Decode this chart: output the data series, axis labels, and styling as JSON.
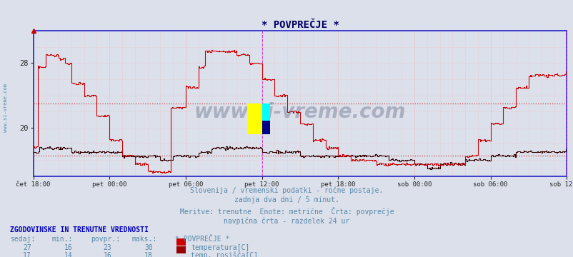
{
  "title": "* POVPREČJE *",
  "bg_color": "#dce0ea",
  "plot_bg_color": "#dce0ea",
  "line_temp_color": "#cc0000",
  "line_dew_color": "#330000",
  "grid_minor_color": "#f0b8b8",
  "grid_major_color": "#e88888",
  "axis_color": "#2222cc",
  "text_color": "#5588aa",
  "xtick_labels": [
    "čet 18:00",
    "pet 00:00",
    "pet 06:00",
    "pet 12:00",
    "pet 18:00",
    "sob 00:00",
    "sob 06:00",
    "sob 12:00"
  ],
  "ytick_labels": [
    "20",
    "28"
  ],
  "ytick_values": [
    20,
    28
  ],
  "ymin": 14.0,
  "ymax": 32.0,
  "avg_temp": 23.0,
  "avg_dew": 16.5,
  "subtitle_lines": [
    "Slovenija / vremenski podatki - ročne postaje.",
    "zadnja dva dni / 5 minut.",
    "Meritve: trenutne  Enote: metrične  Črta: povprečje",
    "navpična črta - razdelek 24 ur"
  ],
  "table_header": "ZGODOVINSKE IN TRENUTNE VREDNOSTI",
  "col_headers": [
    "sedaj:",
    "min.:",
    "povpr.:",
    "maks.:",
    "* POVPREČJE *"
  ],
  "row1_vals": [
    "27",
    "16",
    "23",
    "30"
  ],
  "row1_label": "temperatura[C]",
  "row1_color": "#cc0000",
  "row2_vals": [
    "17",
    "14",
    "16",
    "18"
  ],
  "row2_label": "temp. rosišča[C]",
  "row2_color": "#990000",
  "watermark": "www.si-vreme.com",
  "n_points": 504,
  "vline_hour": 18,
  "hours_per_tick": 6
}
